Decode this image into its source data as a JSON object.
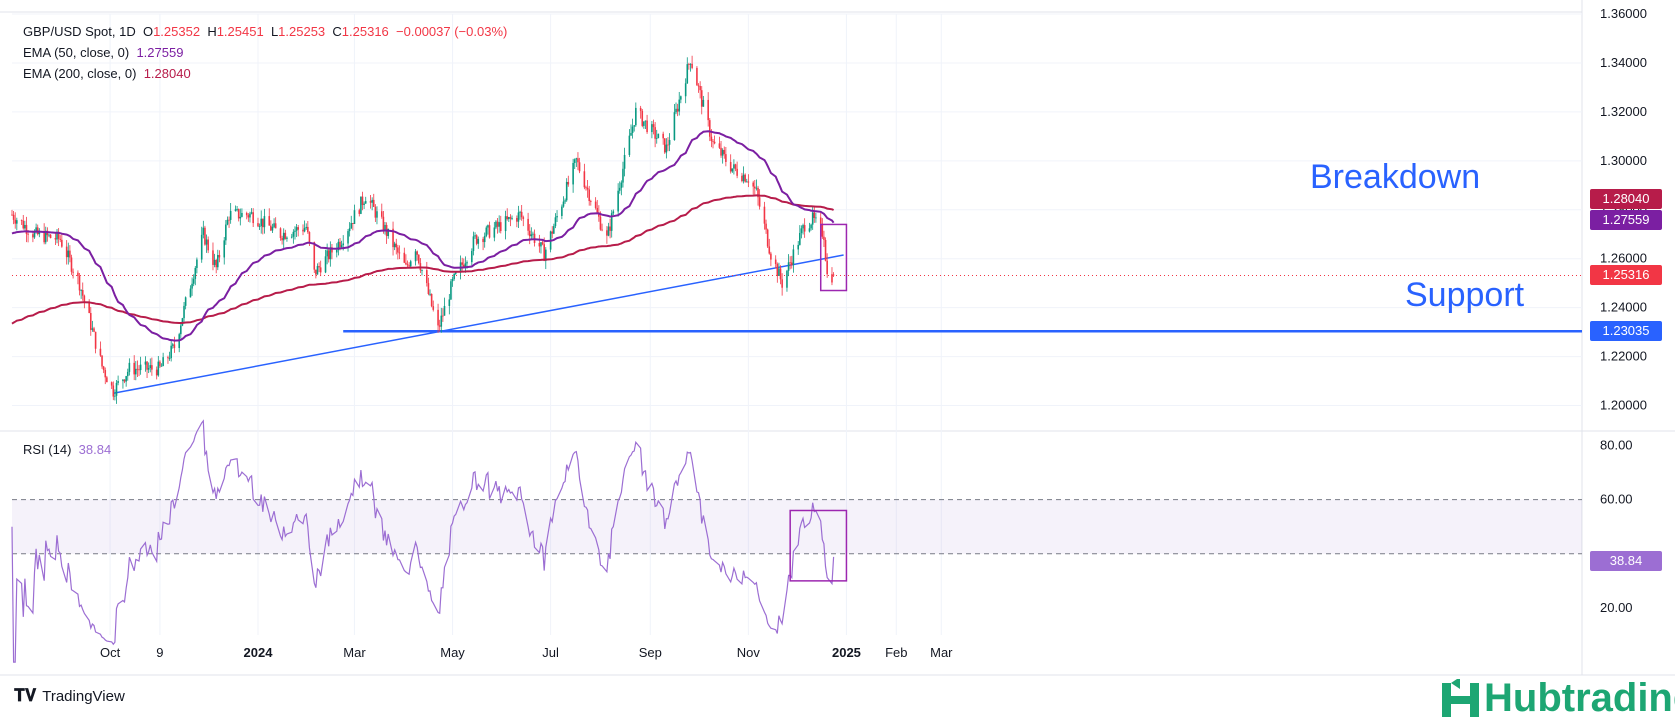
{
  "header": {
    "symbol": "GBP/USD Spot, 1D",
    "ohlc": [
      {
        "k": "O",
        "v": "1.25352"
      },
      {
        "k": "H",
        "v": "1.25451"
      },
      {
        "k": "L",
        "v": "1.25253"
      },
      {
        "k": "C",
        "v": "1.25316"
      }
    ],
    "change": "−0.00037 (−0.03%)",
    "ema50_label": "EMA (50, close, 0)",
    "ema50_value": "1.27559",
    "ema200_label": "EMA (200, close, 0)",
    "ema200_value": "1.28040",
    "rsi_label": "RSI (14)",
    "rsi_value": "38.84"
  },
  "annotations": {
    "breakdown": "Breakdown",
    "support": "Support"
  },
  "price_tags": {
    "ema200": "1.28040",
    "ema50": "1.27559",
    "close": "1.25316",
    "support": "1.23035",
    "rsi": "38.84"
  },
  "footer": {
    "tradingview": "TradingView",
    "brand": "Hubtrading"
  },
  "colors": {
    "up": "#089981",
    "down": "#f23645",
    "ema50": "#7b1fa2",
    "ema200": "#b71c4a",
    "rsi": "#9c6ed3",
    "line": "#2962ff",
    "box": "#9c27b0"
  },
  "chart_data": {
    "type": "candlestick",
    "title": "GBP/USD Spot, 1D",
    "x_ticks": [
      "Oct",
      "9",
      "2024",
      "Mar",
      "May",
      "Jul",
      "Sep",
      "Nov",
      "2025",
      "Feb",
      "Mar"
    ],
    "price_axis": {
      "ticks": [
        "1.20000",
        "1.22000",
        "1.24000",
        "1.26000",
        "1.28000",
        "1.30000",
        "1.32000",
        "1.34000",
        "1.36000"
      ],
      "range": [
        1.19,
        1.36
      ]
    },
    "rsi_axis": {
      "ticks": [
        "20.00",
        "60.00",
        "80.00"
      ],
      "range": [
        10,
        85
      ],
      "band": [
        40,
        60
      ]
    },
    "anchors": [
      {
        "date": "2023-08-01",
        "close": 1.278
      },
      {
        "date": "2023-08-15",
        "close": 1.27
      },
      {
        "date": "2023-08-31",
        "close": 1.268
      },
      {
        "date": "2023-09-12",
        "close": 1.25
      },
      {
        "date": "2023-09-26",
        "close": 1.216
      },
      {
        "date": "2023-10-03",
        "close": 1.206
      },
      {
        "date": "2023-10-13",
        "close": 1.215
      },
      {
        "date": "2023-10-20",
        "close": 1.215
      },
      {
        "date": "2023-11-01",
        "close": 1.215
      },
      {
        "date": "2023-11-10",
        "close": 1.224
      },
      {
        "date": "2023-11-21",
        "close": 1.252
      },
      {
        "date": "2023-11-28",
        "close": 1.27
      },
      {
        "date": "2023-12-06",
        "close": 1.256
      },
      {
        "date": "2023-12-14",
        "close": 1.278
      },
      {
        "date": "2023-12-28",
        "close": 1.278
      },
      {
        "date": "2024-01-15",
        "close": 1.27
      },
      {
        "date": "2024-01-31",
        "close": 1.273
      },
      {
        "date": "2024-02-05",
        "close": 1.254
      },
      {
        "date": "2024-02-22",
        "close": 1.268
      },
      {
        "date": "2024-03-08",
        "close": 1.286
      },
      {
        "date": "2024-03-20",
        "close": 1.272
      },
      {
        "date": "2024-04-02",
        "close": 1.256
      },
      {
        "date": "2024-04-08",
        "close": 1.265
      },
      {
        "date": "2024-04-22",
        "close": 1.231
      },
      {
        "date": "2024-05-01",
        "close": 1.25
      },
      {
        "date": "2024-05-15",
        "close": 1.268
      },
      {
        "date": "2024-06-12",
        "close": 1.278
      },
      {
        "date": "2024-06-27",
        "close": 1.262
      },
      {
        "date": "2024-07-17",
        "close": 1.3
      },
      {
        "date": "2024-08-05",
        "close": 1.268
      },
      {
        "date": "2024-08-23",
        "close": 1.32
      },
      {
        "date": "2024-09-11",
        "close": 1.305
      },
      {
        "date": "2024-09-26",
        "close": 1.342
      },
      {
        "date": "2024-10-10",
        "close": 1.307
      },
      {
        "date": "2024-10-22",
        "close": 1.297
      },
      {
        "date": "2024-11-01",
        "close": 1.293
      },
      {
        "date": "2024-11-06",
        "close": 1.287
      },
      {
        "date": "2024-11-15",
        "close": 1.262
      },
      {
        "date": "2024-11-22",
        "close": 1.25
      },
      {
        "date": "2024-12-06",
        "close": 1.274
      },
      {
        "date": "2024-12-11",
        "close": 1.276
      },
      {
        "date": "2024-12-18",
        "close": 1.27
      },
      {
        "date": "2024-12-20",
        "close": 1.253
      },
      {
        "date": "2024-12-24",
        "close": 1.2532
      }
    ],
    "ema50_last": 1.27559,
    "ema200_last": 1.2804,
    "last_close": 1.25316,
    "support_level": 1.23035,
    "rising_trendline": [
      {
        "date": "2023-10-03",
        "value": 1.205
      },
      {
        "date": "2024-12-24",
        "value": 1.2615
      }
    ],
    "rsi_last": 38.84
  }
}
